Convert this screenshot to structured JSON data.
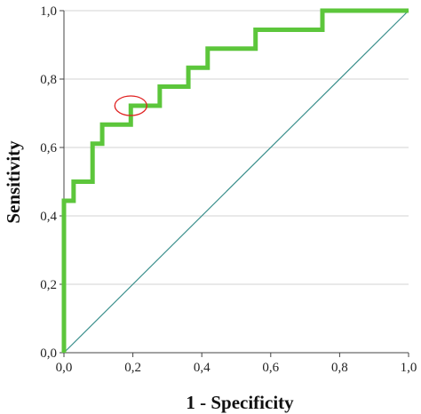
{
  "chart_data": {
    "type": "line",
    "title": "",
    "xlabel": "1 - Specificity",
    "ylabel": "Sensitivity",
    "xlim": [
      0,
      1
    ],
    "ylim": [
      0,
      1
    ],
    "x_ticks": [
      "0,0",
      "0,2",
      "0,4",
      "0,6",
      "0,8",
      "1,0"
    ],
    "y_ticks": [
      "0,0",
      "0,2",
      "0,4",
      "0,6",
      "0,8",
      "1,0"
    ],
    "grid": "horizontal",
    "series": [
      {
        "color": "#5cc63b",
        "points": [
          [
            0.0,
            0.0
          ],
          [
            0.0,
            0.444
          ],
          [
            0.028,
            0.444
          ],
          [
            0.028,
            0.5
          ],
          [
            0.083,
            0.5
          ],
          [
            0.083,
            0.611
          ],
          [
            0.111,
            0.611
          ],
          [
            0.111,
            0.667
          ],
          [
            0.194,
            0.667
          ],
          [
            0.194,
            0.722
          ],
          [
            0.278,
            0.722
          ],
          [
            0.278,
            0.778
          ],
          [
            0.361,
            0.778
          ],
          [
            0.361,
            0.833
          ],
          [
            0.417,
            0.833
          ],
          [
            0.417,
            0.889
          ],
          [
            0.556,
            0.889
          ],
          [
            0.556,
            0.944
          ],
          [
            0.75,
            0.944
          ],
          [
            0.75,
            1.0
          ],
          [
            1.0,
            1.0
          ]
        ]
      },
      {
        "color": "#3a8f8c",
        "points": [
          [
            0,
            0
          ],
          [
            1,
            1
          ]
        ]
      }
    ],
    "annotations": [
      {
        "type": "ellipse",
        "color": "#e02020",
        "x": 0.194,
        "y": 0.722
      }
    ]
  }
}
